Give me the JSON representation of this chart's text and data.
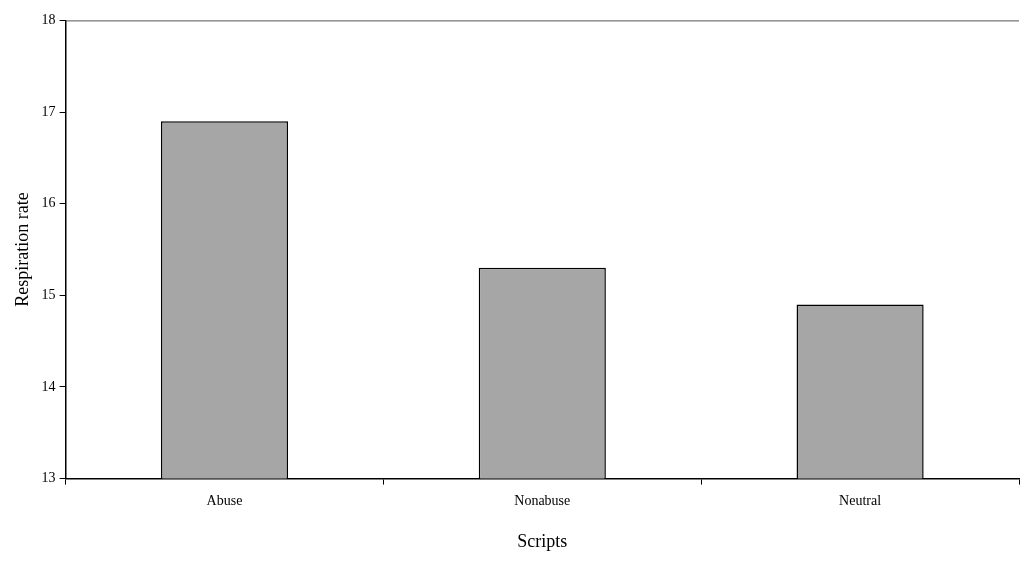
{
  "chart_data": {
    "type": "bar",
    "xlabel": "Scripts",
    "ylabel": "Respiration rate",
    "categories": [
      "Abuse",
      "Nonabuse",
      "Neutral"
    ],
    "values": [
      16.9,
      15.3,
      14.9
    ],
    "color": "#a6a6a6",
    "ylim": [
      13,
      18
    ],
    "yticks": [
      13,
      14,
      15,
      16,
      17,
      18
    ],
    "grid": false,
    "legend": false
  }
}
